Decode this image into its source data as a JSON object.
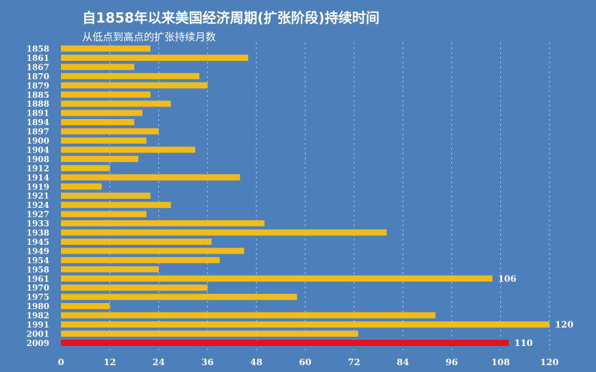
{
  "title": "自1858年以来美国经济周期(扩张阶段)持续时间",
  "subtitle": "从低点到高点的扩张持续月数",
  "colors": {
    "background": "#4d7fba",
    "bar": "#f2bb1c",
    "highlight": "#e0141f",
    "text": "#ffffff"
  },
  "chart_data": {
    "type": "bar",
    "orientation": "horizontal",
    "title": "自1858年以来美国经济周期(扩张阶段)持续时间",
    "subtitle": "从低点到高点的扩张持续月数",
    "xlabel": "",
    "ylabel": "",
    "xlim": [
      0,
      120
    ],
    "xticks": [
      0,
      12,
      24,
      36,
      48,
      60,
      72,
      84,
      96,
      108,
      120
    ],
    "grid": "vertical dashed",
    "categories": [
      "1858",
      "1861",
      "1867",
      "1870",
      "1879",
      "1885",
      "1888",
      "1891",
      "1894",
      "1897",
      "1900",
      "1904",
      "1908",
      "1912",
      "1914",
      "1919",
      "1921",
      "1924",
      "1927",
      "1933",
      "1938",
      "1945",
      "1949",
      "1954",
      "1958",
      "1961",
      "1970",
      "1975",
      "1980",
      "1982",
      "1991",
      "2001",
      "2009"
    ],
    "values": [
      22,
      46,
      18,
      34,
      36,
      22,
      27,
      20,
      18,
      24,
      21,
      33,
      19,
      12,
      44,
      10,
      22,
      27,
      21,
      50,
      80,
      37,
      45,
      39,
      24,
      106,
      36,
      58,
      12,
      92,
      120,
      73,
      110
    ],
    "highlight_category": "2009",
    "data_labels": [
      {
        "category": "1961",
        "text": "106"
      },
      {
        "category": "1991",
        "text": "120"
      },
      {
        "category": "2009",
        "text": "110"
      }
    ]
  }
}
